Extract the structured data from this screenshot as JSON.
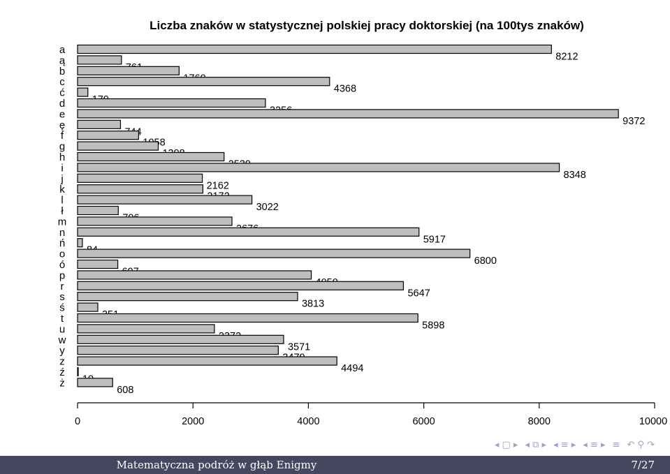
{
  "chart_data": {
    "type": "bar",
    "orientation": "horizontal",
    "title": "Liczba znaków w statystycznej polskiej pracy doktorskiej (na 100tys znaków)",
    "categories": [
      "a",
      "ą",
      "b",
      "c",
      "ć",
      "d",
      "e",
      "ę",
      "f",
      "g",
      "h",
      "i",
      "j",
      "k",
      "l",
      "ł",
      "m",
      "n",
      "ń",
      "o",
      "ó",
      "p",
      "r",
      "s",
      "ś",
      "t",
      "u",
      "w",
      "y",
      "z",
      "ź",
      "ż"
    ],
    "values": [
      8212,
      761,
      1760,
      4368,
      179,
      3256,
      9372,
      744,
      1058,
      1398,
      2539,
      8348,
      2162,
      2172,
      3022,
      706,
      2676,
      5917,
      84,
      6800,
      697,
      4050,
      5647,
      3813,
      351,
      5898,
      2372,
      3571,
      3479,
      4494,
      10,
      608
    ],
    "xlim": [
      0,
      10000
    ],
    "xticks": [
      0,
      2000,
      4000,
      6000,
      8000,
      10000
    ],
    "data_labels": true,
    "grid": false,
    "bar_color": "#bebebe"
  },
  "nav": {
    "icons": [
      "frame-prev-icon",
      "frame-next-icon",
      "subsection-prev-icon",
      "subsection-next-icon",
      "section-prev-icon",
      "section-next-icon",
      "align-icon",
      "search-back-icon",
      "search-icon",
      "search-forward-icon"
    ],
    "glyphs": [
      "◂ ▢ ▸",
      "◂ ⧉ ▸",
      "◂ ≡ ▸",
      "◂ ≡ ▸",
      "≡",
      "↶ ⚲ ↷"
    ],
    "color": "#9da3c2"
  },
  "footer": {
    "title": "Matematyczna podróż w głąb Enigmy",
    "page": "7/27",
    "background": "#44475e"
  }
}
